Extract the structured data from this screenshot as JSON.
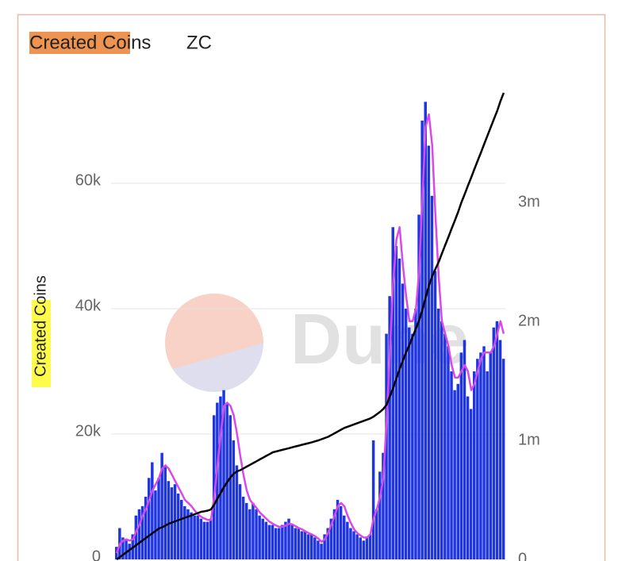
{
  "chart_data": {
    "type": "bar",
    "title": "Created Coins",
    "subtitle": "ZC",
    "y_label": "Created Coins",
    "watermark": "Dune",
    "ylim": [
      0,
      75000
    ],
    "yticks": [
      {
        "value": 0,
        "label": "0"
      },
      {
        "value": 20000,
        "label": "20k"
      },
      {
        "value": 40000,
        "label": "40k"
      },
      {
        "value": 60000,
        "label": "60k"
      }
    ],
    "y2lim": [
      0,
      3950000
    ],
    "y2ticks": [
      {
        "value": 0,
        "label": "0"
      },
      {
        "value": 1000000,
        "label": "1m"
      },
      {
        "value": 2000000,
        "label": "2m"
      },
      {
        "value": 3000000,
        "label": "3m"
      }
    ],
    "grid": true,
    "series": [
      {
        "type": "bar",
        "color": "#1f35e0",
        "values": [
          2000,
          5000,
          3500,
          3000,
          2500,
          4000,
          7000,
          8000,
          8500,
          10000,
          13000,
          15500,
          11000,
          13000,
          17000,
          15000,
          12500,
          11500,
          12000,
          10500,
          9500,
          8500,
          8000,
          7500,
          7000,
          7000,
          6500,
          6000,
          6000,
          6500,
          23000,
          25000,
          26000,
          27000,
          25000,
          23000,
          19000,
          15000,
          12000,
          10000,
          9000,
          8000,
          9000,
          8000,
          7000,
          6500,
          6000,
          5500,
          5500,
          5000,
          5000,
          5500,
          6000,
          6500,
          5500,
          5000,
          5000,
          4500,
          4500,
          4000,
          4000,
          3500,
          3000,
          2500,
          4000,
          5000,
          6500,
          8000,
          9500,
          8500,
          7000,
          6000,
          5000,
          4500,
          4000,
          3500,
          3000,
          3500,
          4000,
          19000,
          8000,
          14000,
          17000,
          36000,
          42000,
          53000,
          50000,
          48000,
          44000,
          40000,
          37000,
          36000,
          40000,
          55000,
          70000,
          73000,
          66000,
          58000,
          46000,
          40000,
          38000,
          36000,
          34000,
          30000,
          27000,
          28000,
          33000,
          35000,
          26000,
          24000,
          30000,
          32000,
          33000,
          34000,
          30000,
          33000,
          37000,
          38000,
          35000,
          32000
        ]
      },
      {
        "type": "line",
        "color": "#d84ae8",
        "values": [
          1000,
          2500,
          3000,
          3200,
          3000,
          3200,
          4500,
          5500,
          7000,
          8000,
          9500,
          11000,
          12000,
          13000,
          14500,
          15000,
          14500,
          13500,
          12500,
          11500,
          10500,
          9500,
          9000,
          8500,
          7800,
          7200,
          6800,
          6500,
          6300,
          6300,
          10000,
          15000,
          20000,
          24500,
          25000,
          24500,
          23000,
          20000,
          16500,
          13500,
          11000,
          9500,
          8800,
          8200,
          7500,
          7000,
          6500,
          6000,
          5700,
          5400,
          5200,
          5200,
          5400,
          5700,
          5600,
          5300,
          5000,
          4800,
          4500,
          4200,
          4000,
          3700,
          3300,
          2800,
          3200,
          4200,
          5500,
          7000,
          8500,
          9000,
          8500,
          7000,
          5800,
          4800,
          4200,
          3800,
          3500,
          3500,
          4000,
          6500,
          8000,
          10000,
          13000,
          22000,
          33000,
          44000,
          51000,
          53000,
          47000,
          42000,
          38000,
          38000,
          40000,
          46000,
          58000,
          69000,
          71000,
          66000,
          55000,
          45000,
          38000,
          36000,
          34000,
          31000,
          29000,
          29000,
          30000,
          31000,
          30000,
          27000,
          28000,
          30000,
          32000,
          33000,
          33000,
          33000,
          34000,
          36000,
          38000,
          36000
        ]
      },
      {
        "type": "line",
        "axis": "y2",
        "color": "#000000",
        "values": [
          0,
          20000,
          40000,
          60000,
          80000,
          100000,
          120000,
          140000,
          160000,
          180000,
          200000,
          220000,
          240000,
          260000,
          270000,
          285000,
          300000,
          310000,
          320000,
          330000,
          340000,
          350000,
          360000,
          370000,
          380000,
          390000,
          400000,
          405000,
          410000,
          420000,
          460000,
          510000,
          560000,
          610000,
          650000,
          690000,
          720000,
          740000,
          750000,
          765000,
          780000,
          795000,
          810000,
          825000,
          840000,
          855000,
          870000,
          885000,
          900000,
          907000,
          914000,
          921000,
          928000,
          935000,
          942000,
          949000,
          956000,
          963000,
          970000,
          977000,
          984000,
          992000,
          1000000,
          1010000,
          1020000,
          1030000,
          1045000,
          1060000,
          1075000,
          1090000,
          1105000,
          1115000,
          1125000,
          1135000,
          1145000,
          1155000,
          1165000,
          1175000,
          1185000,
          1200000,
          1220000,
          1240000,
          1265000,
          1300000,
          1370000,
          1440000,
          1520000,
          1600000,
          1670000,
          1740000,
          1800000,
          1870000,
          1940000,
          2010000,
          2100000,
          2200000,
          2300000,
          2380000,
          2440000,
          2500000,
          2570000,
          2640000,
          2710000,
          2780000,
          2850000,
          2920000,
          3000000,
          3070000,
          3140000,
          3210000,
          3280000,
          3350000,
          3420000,
          3490000,
          3560000,
          3630000,
          3700000,
          3770000,
          3850000,
          3920000
        ]
      }
    ]
  }
}
